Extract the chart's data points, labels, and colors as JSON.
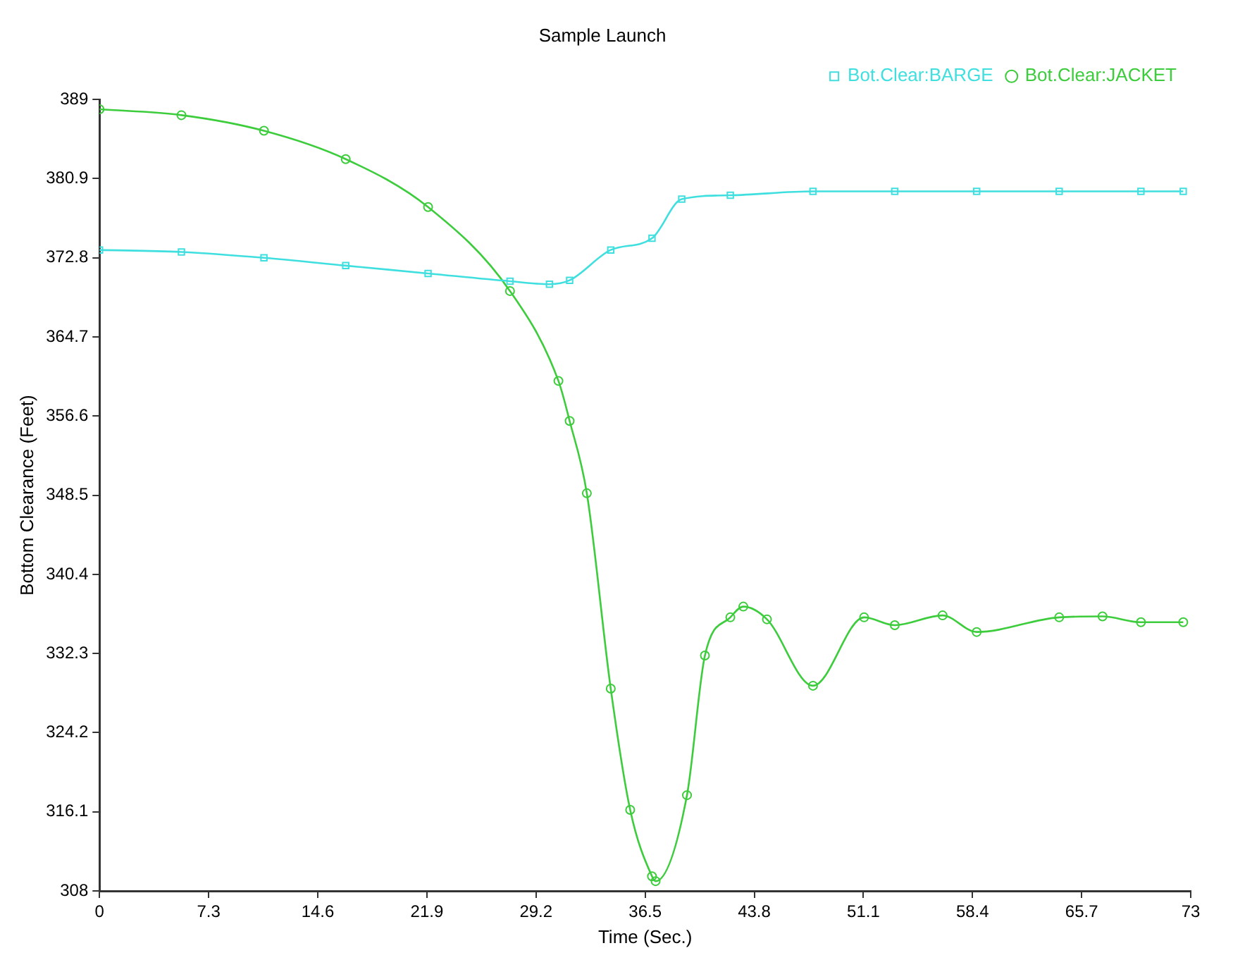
{
  "chart_data": {
    "type": "line",
    "title": "Sample Launch",
    "xlabel": "Time (Sec.)",
    "ylabel": "Bottom Clearance (Feet)",
    "xlim": [
      0,
      73
    ],
    "xticks": [
      0,
      7.3,
      14.6,
      21.9,
      29.2,
      36.5,
      43.8,
      51.1,
      58.4,
      65.7,
      73
    ],
    "ylim": [
      308,
      389
    ],
    "yticks": [
      308,
      316.1,
      324.2,
      332.3,
      340.4,
      348.5,
      356.6,
      364.7,
      372.8,
      380.9,
      389
    ],
    "grid": false,
    "legend": "top right",
    "series": [
      {
        "name": "Bot.Clear:BARGE",
        "color": "#40dfdf",
        "marker": "square",
        "x": [
          0,
          5.48,
          11.0,
          16.47,
          21.98,
          27.46,
          30.1,
          31.45,
          34.2,
          36.96,
          38.95,
          42.2,
          47.73,
          53.2,
          58.68,
          64.2,
          69.67,
          72.5
        ],
        "values": [
          373.6,
          373.4,
          372.8,
          372.0,
          371.2,
          370.4,
          370.1,
          370.5,
          373.6,
          374.8,
          378.8,
          379.2,
          379.6,
          379.6,
          379.6,
          379.6,
          379.6,
          379.6
        ]
      },
      {
        "name": "Bot.Clear:JACKET",
        "color": "#3ccc3c",
        "marker": "circle",
        "x": [
          0,
          5.48,
          11.0,
          16.47,
          21.98,
          27.46,
          30.7,
          31.45,
          32.6,
          34.2,
          35.5,
          36.96,
          37.2,
          39.3,
          40.5,
          42.2,
          43.07,
          44.65,
          47.73,
          51.15,
          53.2,
          56.4,
          58.68,
          64.2,
          67.1,
          69.67,
          72.5
        ],
        "values": [
          388.0,
          387.4,
          385.8,
          382.9,
          378.0,
          369.4,
          360.2,
          356.1,
          348.7,
          328.7,
          316.3,
          309.5,
          309.0,
          317.8,
          332.1,
          336.0,
          337.1,
          335.8,
          329.0,
          336.0,
          335.2,
          336.2,
          334.5,
          336.0,
          336.1,
          335.5,
          335.5
        ]
      }
    ]
  }
}
